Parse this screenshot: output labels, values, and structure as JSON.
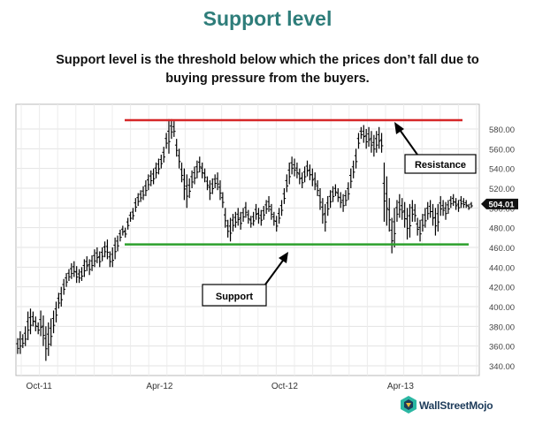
{
  "title": "Support level",
  "subtitle_line1": "Support level is the threshold below which the prices don’t fall due to",
  "subtitle_line2": "buying pressure from the buyers.",
  "brand": "WallStreetMojo",
  "colors": {
    "title": "#2e7d7a",
    "resistance_line": "#d62728",
    "support_line": "#2ca02c",
    "bars": "#000000"
  },
  "chart_data": {
    "type": "bar",
    "subtype": "ohlc",
    "x_ticks": [
      "Oct-11",
      "Apr-12",
      "Oct-12",
      "Apr-13"
    ],
    "y_ticks": [
      "340.00",
      "360.00",
      "380.00",
      "400.00",
      "420.00",
      "440.00",
      "460.00",
      "480.00",
      "500.00",
      "520.00",
      "540.00",
      "560.00",
      "580.00"
    ],
    "ylim": [
      330,
      592
    ],
    "grid": true,
    "last_price_label": "504.01",
    "resistance_level": 589,
    "support_level": 463,
    "annotations": [
      {
        "text": "Resistance",
        "target": "resistance-line"
      },
      {
        "text": "Support",
        "target": "support-line"
      }
    ],
    "bars": [
      [
        368,
        352
      ],
      [
        375,
        352
      ],
      [
        372,
        358
      ],
      [
        380,
        360
      ],
      [
        395,
        366
      ],
      [
        398,
        372
      ],
      [
        395,
        380
      ],
      [
        390,
        375
      ],
      [
        384,
        372
      ],
      [
        396,
        370
      ],
      [
        391,
        360
      ],
      [
        380,
        345
      ],
      [
        384,
        350
      ],
      [
        388,
        360
      ],
      [
        396,
        373
      ],
      [
        405,
        384
      ],
      [
        414,
        398
      ],
      [
        420,
        400
      ],
      [
        428,
        412
      ],
      [
        434,
        420
      ],
      [
        438,
        426
      ],
      [
        444,
        428
      ],
      [
        446,
        430
      ],
      [
        441,
        424
      ],
      [
        438,
        424
      ],
      [
        440,
        426
      ],
      [
        448,
        430
      ],
      [
        451,
        436
      ],
      [
        448,
        432
      ],
      [
        452,
        436
      ],
      [
        458,
        440
      ],
      [
        460,
        444
      ],
      [
        456,
        440
      ],
      [
        460,
        446
      ],
      [
        466,
        450
      ],
      [
        468,
        448
      ],
      [
        456,
        440
      ],
      [
        460,
        440
      ],
      [
        470,
        448
      ],
      [
        472,
        456
      ],
      [
        478,
        466
      ],
      [
        482,
        472
      ],
      [
        480,
        470
      ],
      [
        490,
        478
      ],
      [
        496,
        486
      ],
      [
        500,
        488
      ],
      [
        510,
        496
      ],
      [
        515,
        502
      ],
      [
        518,
        506
      ],
      [
        522,
        508
      ],
      [
        528,
        512
      ],
      [
        534,
        518
      ],
      [
        538,
        522
      ],
      [
        540,
        524
      ],
      [
        546,
        530
      ],
      [
        550,
        534
      ],
      [
        554,
        540
      ],
      [
        562,
        546
      ],
      [
        576,
        560
      ],
      [
        590,
        555
      ],
      [
        590,
        570
      ],
      [
        588,
        572
      ],
      [
        570,
        552
      ],
      [
        560,
        540
      ],
      [
        546,
        526
      ],
      [
        540,
        508
      ],
      [
        534,
        500
      ],
      [
        530,
        510
      ],
      [
        538,
        520
      ],
      [
        542,
        524
      ],
      [
        548,
        530
      ],
      [
        552,
        536
      ],
      [
        546,
        530
      ],
      [
        540,
        526
      ],
      [
        532,
        518
      ],
      [
        528,
        508
      ],
      [
        530,
        514
      ],
      [
        534,
        520
      ],
      [
        536,
        518
      ],
      [
        528,
        508
      ],
      [
        516,
        500
      ],
      [
        500,
        480
      ],
      [
        488,
        470
      ],
      [
        490,
        466
      ],
      [
        494,
        476
      ],
      [
        496,
        480
      ],
      [
        500,
        482
      ],
      [
        496,
        478
      ],
      [
        500,
        486
      ],
      [
        506,
        490
      ],
      [
        498,
        484
      ],
      [
        492,
        480
      ],
      [
        496,
        482
      ],
      [
        504,
        488
      ],
      [
        500,
        484
      ],
      [
        498,
        482
      ],
      [
        502,
        488
      ],
      [
        508,
        494
      ],
      [
        512,
        496
      ],
      [
        504,
        488
      ],
      [
        496,
        482
      ],
      [
        492,
        476
      ],
      [
        500,
        484
      ],
      [
        508,
        492
      ],
      [
        520,
        504
      ],
      [
        534,
        516
      ],
      [
        546,
        524
      ],
      [
        552,
        534
      ],
      [
        550,
        532
      ],
      [
        546,
        530
      ],
      [
        540,
        524
      ],
      [
        536,
        520
      ],
      [
        542,
        526
      ],
      [
        548,
        532
      ],
      [
        544,
        528
      ],
      [
        540,
        522
      ],
      [
        536,
        518
      ],
      [
        528,
        512
      ],
      [
        520,
        498
      ],
      [
        510,
        484
      ],
      [
        504,
        476
      ],
      [
        512,
        492
      ],
      [
        518,
        500
      ],
      [
        522,
        506
      ],
      [
        524,
        512
      ],
      [
        520,
        506
      ],
      [
        516,
        500
      ],
      [
        514,
        496
      ],
      [
        518,
        502
      ],
      [
        526,
        508
      ],
      [
        540,
        520
      ],
      [
        548,
        530
      ],
      [
        560,
        540
      ],
      [
        576,
        560
      ],
      [
        582,
        570
      ],
      [
        584,
        566
      ],
      [
        580,
        560
      ],
      [
        582,
        562
      ],
      [
        578,
        556
      ],
      [
        574,
        552
      ],
      [
        578,
        556
      ],
      [
        582,
        560
      ],
      [
        576,
        556
      ],
      [
        546,
        486
      ],
      [
        532,
        482
      ],
      [
        510,
        476
      ],
      [
        490,
        454
      ],
      [
        500,
        460
      ],
      [
        508,
        486
      ],
      [
        514,
        490
      ],
      [
        510,
        488
      ],
      [
        506,
        480
      ],
      [
        500,
        468
      ],
      [
        504,
        470
      ],
      [
        508,
        486
      ],
      [
        504,
        486
      ],
      [
        490,
        472
      ],
      [
        488,
        466
      ],
      [
        494,
        476
      ],
      [
        500,
        480
      ],
      [
        506,
        488
      ],
      [
        508,
        490
      ],
      [
        504,
        482
      ],
      [
        500,
        472
      ],
      [
        504,
        476
      ],
      [
        512,
        492
      ],
      [
        508,
        492
      ],
      [
        506,
        488
      ],
      [
        508,
        494
      ],
      [
        512,
        500
      ],
      [
        514,
        502
      ],
      [
        510,
        498
      ],
      [
        508,
        496
      ],
      [
        512,
        500
      ],
      [
        510,
        500
      ],
      [
        508,
        500
      ],
      [
        504,
        498
      ],
      [
        506,
        500
      ]
    ]
  }
}
